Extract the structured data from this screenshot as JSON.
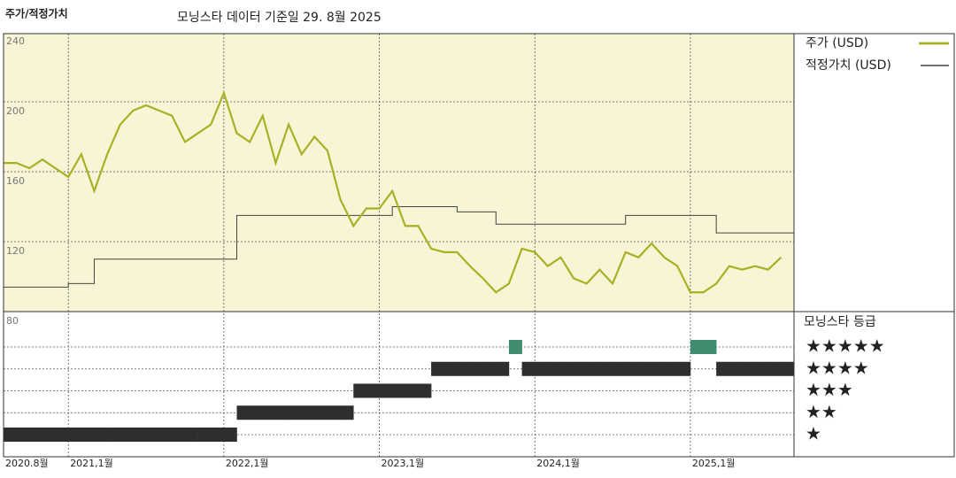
{
  "chart_data": {
    "type": "line",
    "title": "주가/적정가치",
    "subtitle": "모닝스타 데이터 기준일 29. 8월 2025",
    "x": [
      "2020-08",
      "2020-09",
      "2020-10",
      "2020-11",
      "2020-12",
      "2021-01",
      "2021-02",
      "2021-03",
      "2021-04",
      "2021-05",
      "2021-06",
      "2021-07",
      "2021-08",
      "2021-09",
      "2021-10",
      "2021-11",
      "2021-12",
      "2022-01",
      "2022-02",
      "2022-03",
      "2022-04",
      "2022-05",
      "2022-06",
      "2022-07",
      "2022-08",
      "2022-09",
      "2022-10",
      "2022-11",
      "2022-12",
      "2023-01",
      "2023-02",
      "2023-03",
      "2023-04",
      "2023-05",
      "2023-06",
      "2023-07",
      "2023-08",
      "2023-09",
      "2023-10",
      "2023-11",
      "2023-12",
      "2024-01",
      "2024-02",
      "2024-03",
      "2024-04",
      "2024-05",
      "2024-06",
      "2024-07",
      "2024-08",
      "2024-09",
      "2024-10",
      "2024-11",
      "2024-12",
      "2025-01",
      "2025-02",
      "2025-03",
      "2025-04",
      "2025-05",
      "2025-06",
      "2025-07",
      "2025-08"
    ],
    "series": [
      {
        "name": "주가 (USD)",
        "color": "#a9b024",
        "width": 2.2,
        "values": [
          165,
          165,
          162,
          167,
          162,
          157,
          170,
          149,
          170,
          187,
          195,
          198,
          195,
          192,
          177,
          182,
          187,
          205,
          182,
          177,
          192,
          165,
          187,
          170,
          180,
          172,
          144,
          129,
          139,
          139,
          149,
          129,
          129,
          116,
          114,
          114,
          106,
          99,
          91,
          96,
          116,
          114,
          106,
          111,
          99,
          96,
          104,
          96,
          114,
          111,
          119,
          111,
          106,
          91,
          91,
          96,
          106,
          104,
          106,
          104,
          111
        ]
      },
      {
        "name": "적정가치 (USD)",
        "color": "#444444",
        "width": 1,
        "step": true,
        "values": [
          94,
          94,
          94,
          94,
          94,
          96,
          96,
          110,
          110,
          110,
          110,
          110,
          110,
          110,
          110,
          110,
          110,
          110,
          135,
          135,
          135,
          135,
          135,
          135,
          135,
          135,
          135,
          135,
          135,
          135,
          140,
          140,
          140,
          140,
          140,
          137,
          137,
          137,
          130,
          130,
          130,
          130,
          130,
          130,
          130,
          130,
          130,
          130,
          135,
          135,
          135,
          135,
          135,
          135,
          135,
          125,
          125,
          125,
          125,
          125,
          125
        ]
      }
    ],
    "xlim": [
      "2020-08",
      "2025-09"
    ],
    "xticks": [
      {
        "value": "2020-08",
        "label": "2020.8월"
      },
      {
        "value": "2021-01",
        "label": "2021,1월"
      },
      {
        "value": "2022-01",
        "label": "2022,1월"
      },
      {
        "value": "2023-01",
        "label": "2023,1월"
      },
      {
        "value": "2024-01",
        "label": "2024,1월"
      },
      {
        "value": "2025-01",
        "label": "2025,1월"
      }
    ],
    "ylim": [
      80,
      240
    ],
    "yticks": [
      80,
      120,
      160,
      200,
      240
    ],
    "grid": true,
    "background": "#f8f4d6",
    "rating": {
      "title": "모닝스타 등급",
      "levels": [
        {
          "value": 5,
          "label": "★★★★★"
        },
        {
          "value": 4,
          "label": "★★★★"
        },
        {
          "value": 3,
          "label": "★★★"
        },
        {
          "value": 2,
          "label": "★★"
        },
        {
          "value": 1,
          "label": "★"
        }
      ],
      "color": "#2e2e2e",
      "top_color": "#3f8c6e",
      "values": [
        1,
        1,
        1,
        1,
        1,
        1,
        1,
        1,
        1,
        1,
        1,
        1,
        1,
        1,
        1,
        1,
        1,
        1,
        2,
        2,
        2,
        2,
        2,
        2,
        2,
        2,
        2,
        3,
        3,
        3,
        3,
        3,
        3,
        4,
        4,
        4,
        4,
        4,
        4,
        5,
        4,
        4,
        4,
        4,
        4,
        4,
        4,
        4,
        4,
        4,
        4,
        4,
        4,
        5,
        5,
        4,
        4,
        4,
        4,
        4,
        4
      ]
    }
  }
}
